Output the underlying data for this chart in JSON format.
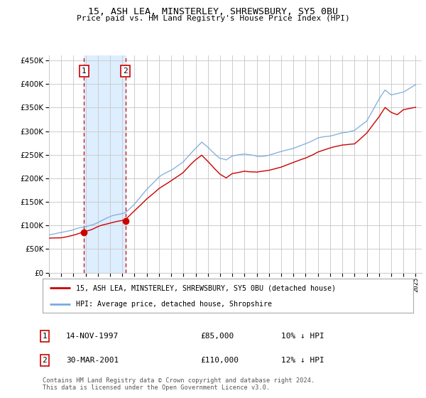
{
  "title": "15, ASH LEA, MINSTERLEY, SHREWSBURY, SY5 0BU",
  "subtitle": "Price paid vs. HM Land Registry's House Price Index (HPI)",
  "legend_line1": "15, ASH LEA, MINSTERLEY, SHREWSBURY, SY5 0BU (detached house)",
  "legend_line2": "HPI: Average price, detached house, Shropshire",
  "footer": "Contains HM Land Registry data © Crown copyright and database right 2024.\nThis data is licensed under the Open Government Licence v3.0.",
  "sale1_date": "14-NOV-1997",
  "sale1_price": 85000,
  "sale1_pct": "10% ↓ HPI",
  "sale2_date": "30-MAR-2001",
  "sale2_price": 110000,
  "sale2_pct": "12% ↓ HPI",
  "sale1_x": 1997.87,
  "sale2_x": 2001.25,
  "red_color": "#cc0000",
  "blue_color": "#7aabdb",
  "shade_color": "#ddeeff",
  "dashed_color": "#cc0000",
  "grid_color": "#cccccc",
  "bg_color": "#ffffff",
  "ylim": [
    0,
    460000
  ],
  "xlim": [
    1995.0,
    2025.5
  ]
}
